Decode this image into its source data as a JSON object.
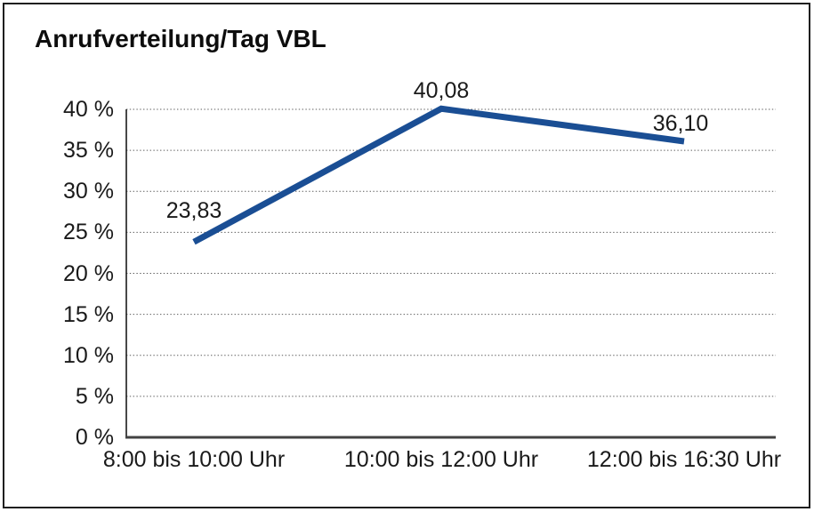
{
  "page": {
    "title": "Anrufverteilung/Tag VBL"
  },
  "chart_data": {
    "type": "line",
    "title": "Anrufverteilung/Tag VBL",
    "categories": [
      "8:00 bis 10:00 Uhr",
      "10:00 bis 12:00 Uhr",
      "12:00 bis 16:30 Uhr"
    ],
    "series": [
      {
        "name": "Anrufverteilung/Tag VBL",
        "values": [
          23.83,
          40.08,
          36.1
        ],
        "value_labels": [
          "23,83",
          "40,08",
          "36,10"
        ]
      }
    ],
    "xlabel": "",
    "ylabel": "",
    "ylim": [
      0,
      40
    ],
    "ytick_step": 5,
    "ytick_labels": [
      "0 %",
      "5 %",
      "10 %",
      "15 %",
      "20 %",
      "25 %",
      "30 %",
      "35 %",
      "40 %"
    ],
    "grid": "horizontal-dotted",
    "legend": "none",
    "colors": {
      "line": "#1a4e94",
      "grid": "#5c5c5c",
      "y_axis": "#1a1a1a",
      "x_axis": "#424242",
      "text": "#1a1a1a",
      "frame_border": "#1f1f1f",
      "background": "#ffffff"
    }
  }
}
